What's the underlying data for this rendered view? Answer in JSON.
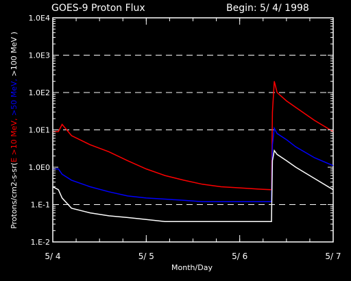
{
  "chart_data": {
    "type": "line",
    "title": "GOES-9 Proton Flux",
    "subtitle": "Begin: 5/ 4/ 1998",
    "xlabel": "Month/Day",
    "ylabel_parts": [
      "Protons/cm2-s-sr(",
      "E >10 MeV, ",
      ">50 MeV, ",
      ">100 MeV",
      " )"
    ],
    "ylabel_colors": [
      "#ffffff",
      "#ff0000",
      "#0000ff",
      "#ffffff",
      "#ffffff"
    ],
    "yscale": "log",
    "ylim": [
      0.01,
      10000
    ],
    "yticks": [
      0.01,
      0.1,
      1,
      10,
      100,
      1000,
      10000
    ],
    "ytick_labels": [
      "1.E-2",
      "1.E-1",
      "1.0E0",
      "1.0E1",
      "1.0E2",
      "1.0E3",
      "1.0E4"
    ],
    "grid_y_values": [
      0.1,
      10,
      100,
      1000
    ],
    "x_unit": "days since 5/4/1998 00:00",
    "xlim": [
      0,
      3
    ],
    "xticks": [
      0,
      1,
      2,
      3
    ],
    "xtick_labels": [
      "5/ 4",
      "5/ 5",
      "5/ 6",
      "5/ 7"
    ],
    "series": [
      {
        "name": "E >10 MeV",
        "color": "#ff0000",
        "x": [
          0,
          0.06,
          0.1,
          0.2,
          0.4,
          0.6,
          0.8,
          1.0,
          1.2,
          1.4,
          1.6,
          1.8,
          2.0,
          2.2,
          2.34,
          2.35,
          2.37,
          2.4,
          2.5,
          2.6,
          2.8,
          3.0
        ],
        "y": [
          9,
          9,
          14,
          7,
          4,
          2.6,
          1.5,
          0.9,
          0.6,
          0.45,
          0.35,
          0.3,
          0.28,
          0.26,
          0.25,
          30,
          200,
          100,
          60,
          40,
          18,
          9
        ]
      },
      {
        "name": ">50 MeV",
        "color": "#0000ff",
        "x": [
          0,
          0.06,
          0.1,
          0.2,
          0.4,
          0.6,
          0.8,
          1.0,
          1.2,
          1.4,
          1.6,
          1.8,
          2.0,
          2.2,
          2.34,
          2.35,
          2.37,
          2.4,
          2.5,
          2.6,
          2.8,
          3.0
        ],
        "y": [
          0.9,
          0.9,
          0.65,
          0.45,
          0.3,
          0.22,
          0.17,
          0.15,
          0.14,
          0.13,
          0.12,
          0.12,
          0.12,
          0.12,
          0.12,
          4,
          11,
          8,
          5.5,
          3.5,
          1.8,
          1.1
        ]
      },
      {
        "name": ">100 MeV",
        "color": "#ffffff",
        "x": [
          0,
          0.06,
          0.1,
          0.2,
          0.4,
          0.6,
          0.8,
          1.0,
          1.2,
          1.4,
          1.6,
          1.8,
          2.0,
          2.2,
          2.34,
          2.35,
          2.37,
          2.4,
          2.5,
          2.6,
          2.8,
          3.0
        ],
        "y": [
          0.3,
          0.25,
          0.15,
          0.08,
          0.06,
          0.05,
          0.045,
          0.04,
          0.035,
          0.035,
          0.035,
          0.035,
          0.035,
          0.035,
          0.035,
          1.5,
          2.8,
          2.2,
          1.5,
          1.0,
          0.5,
          0.25
        ]
      }
    ]
  }
}
